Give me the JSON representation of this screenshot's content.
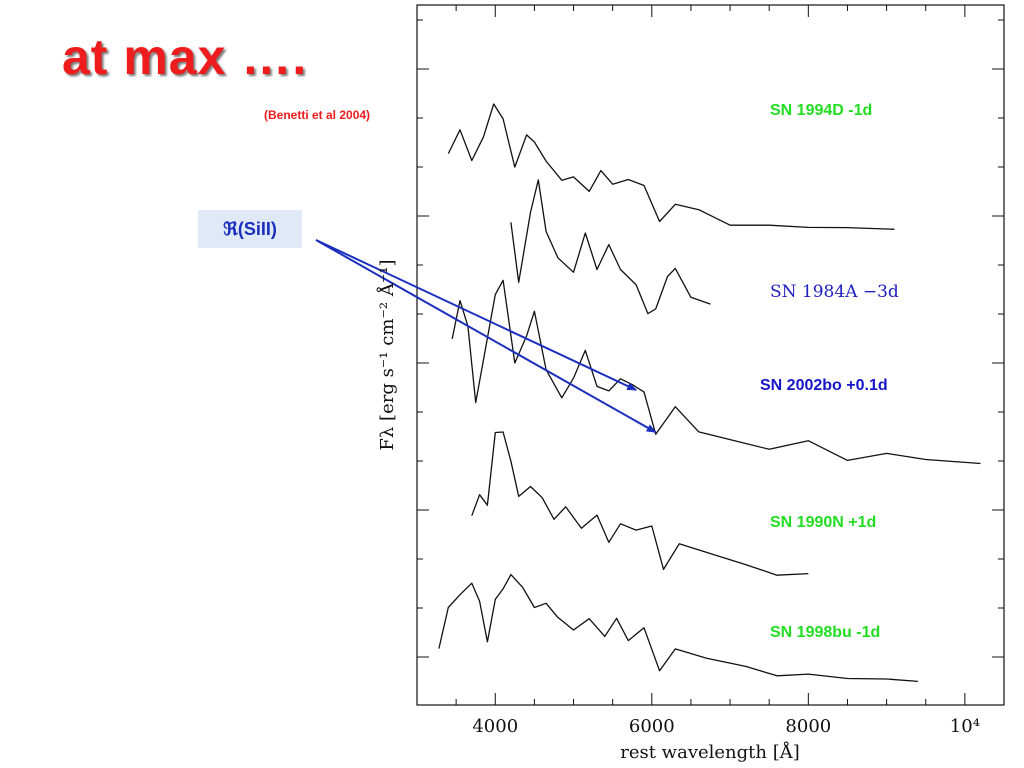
{
  "slide": {
    "title": "at max ….",
    "citation": "(Benetti et al  2004)",
    "sill_label": "ℜ(SiII)"
  },
  "chart_data": {
    "type": "line",
    "xlabel": "rest wavelength [Å]",
    "ylabel": "Fλ [erg s⁻¹ cm⁻² Å⁻¹]",
    "xlim": [
      3000,
      10500
    ],
    "x_ticks": [
      4000,
      6000,
      8000,
      10000
    ],
    "x_tick_labels": [
      "4000",
      "6000",
      "8000",
      "10⁴"
    ],
    "y_scale": "arbitrary offset",
    "grid": false,
    "series": [
      {
        "name": "SN 1994D   -1d",
        "label_color": "#22dd22",
        "x": [
          3400,
          3550,
          3700,
          3850,
          3980,
          4100,
          4250,
          4400,
          4500,
          4650,
          4850,
          5000,
          5200,
          5350,
          5500,
          5700,
          5900,
          6100,
          6300,
          6600,
          7000,
          7500,
          8000,
          8500,
          9100
        ],
        "y": [
          5.1,
          5.6,
          4.9,
          5.4,
          6.15,
          5.8,
          4.8,
          5.5,
          5.3,
          4.9,
          4.5,
          4.6,
          4.3,
          4.7,
          4.4,
          4.5,
          4.4,
          3.65,
          4.0,
          3.85,
          3.55,
          3.55,
          3.5,
          3.5,
          3.45
        ]
      },
      {
        "name": "SN 1984A    −3d",
        "label_color": "#2020c0",
        "x": [
          4200,
          4300,
          4450,
          4550,
          4650,
          4800,
          5000,
          5150,
          5300,
          5450,
          5600,
          5800,
          5950,
          6050,
          6200,
          6300,
          6500,
          6750
        ],
        "y": [
          3.6,
          2.35,
          3.8,
          4.5,
          3.4,
          2.85,
          2.55,
          3.4,
          2.6,
          3.1,
          2.6,
          2.3,
          1.7,
          1.75,
          2.45,
          2.6,
          2.0,
          1.9
        ]
      },
      {
        "name": "SN 2002bo   +0.1d",
        "label_color": "#1616c8",
        "x": [
          3450,
          3550,
          3650,
          3750,
          3850,
          4000,
          4100,
          4250,
          4400,
          4500,
          4650,
          4850,
          5000,
          5150,
          5300,
          5450,
          5600,
          5750,
          5900,
          6050,
          6300,
          6600,
          7000,
          7500,
          8000,
          8500,
          9000,
          9500,
          10200
        ],
        "y": [
          1.1,
          1.95,
          1.4,
          -0.2,
          0.7,
          2.1,
          2.35,
          0.6,
          1.2,
          1.7,
          0.5,
          -0.1,
          0.3,
          0.85,
          0.1,
          0.05,
          0.3,
          0.15,
          0.0,
          -0.9,
          -0.3,
          -0.85,
          -1.05,
          -1.2,
          -1.05,
          -1.45,
          -1.3,
          -1.45,
          -1.5
        ]
      },
      {
        "name": "SN 1990N   +1d",
        "label_color": "#22dd22",
        "x": [
          3700,
          3800,
          3900,
          4000,
          4100,
          4200,
          4300,
          4450,
          4600,
          4750,
          4900,
          5100,
          5300,
          5450,
          5600,
          5800,
          6000,
          6150,
          6350,
          6700,
          7200,
          7600,
          8000
        ],
        "y": [
          -2.6,
          -2.2,
          -2.4,
          -0.9,
          -0.85,
          -1.5,
          -2.2,
          -2.0,
          -2.25,
          -2.7,
          -2.45,
          -2.9,
          -2.6,
          -3.2,
          -2.8,
          -2.95,
          -2.85,
          -3.75,
          -3.2,
          -3.45,
          -3.65,
          -3.9,
          -3.85
        ]
      },
      {
        "name": "SN 1998bu   -1d",
        "label_color": "#22dd22",
        "x": [
          3280,
          3400,
          3550,
          3700,
          3800,
          3900,
          4000,
          4100,
          4200,
          4350,
          4500,
          4650,
          4800,
          5000,
          5200,
          5400,
          5550,
          5700,
          5900,
          6100,
          6300,
          6700,
          7200,
          7600,
          8000,
          8500,
          9000,
          9400
        ],
        "y": [
          -5.45,
          -4.55,
          -4.3,
          -4.1,
          -4.45,
          -5.35,
          -4.4,
          -4.2,
          -3.85,
          -4.15,
          -4.6,
          -4.5,
          -4.8,
          -5.05,
          -4.8,
          -5.2,
          -4.85,
          -5.3,
          -5.0,
          -5.9,
          -5.45,
          -5.65,
          -5.85,
          -6.05,
          -6.0,
          -6.1,
          -6.1,
          -6.15
        ]
      }
    ],
    "annotations": [
      {
        "text": "ℜ(SiII)",
        "arrows_to": [
          [
            5800,
            0.0
          ],
          [
            6050,
            -0.9
          ]
        ]
      }
    ]
  }
}
